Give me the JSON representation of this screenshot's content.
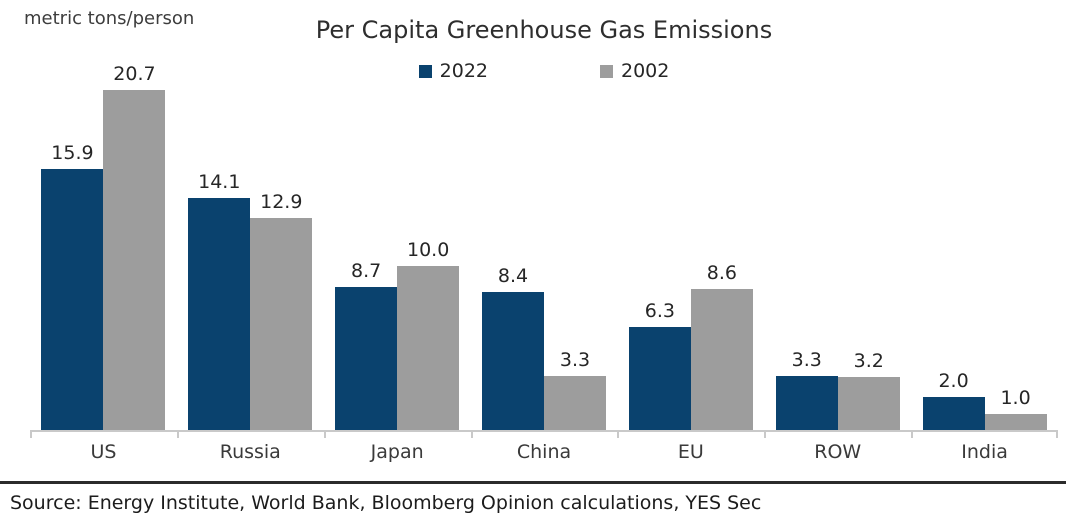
{
  "header": {
    "unit_label": "metric tons/person",
    "title": "Per Capita Greenhouse Gas Emissions"
  },
  "chart_data": {
    "type": "bar",
    "title": "Per Capita Greenhouse Gas Emissions",
    "ylabel": "metric tons/person",
    "xlabel": "",
    "categories": [
      "US",
      "Russia",
      "Japan",
      "China",
      "EU",
      "ROW",
      "India"
    ],
    "series": [
      {
        "name": "2022",
        "color": "#0a426e",
        "values": [
          15.9,
          14.1,
          8.7,
          8.4,
          6.3,
          3.3,
          2.0
        ]
      },
      {
        "name": "2002",
        "color": "#9d9d9d",
        "values": [
          20.7,
          12.9,
          10.0,
          3.3,
          8.6,
          3.2,
          1.0
        ]
      }
    ],
    "ylim": [
      0,
      20.7
    ],
    "value_label_decimals": 1,
    "data_labels": true,
    "legend_position": "top",
    "grid": false,
    "axis_color": "#c9c9c9"
  },
  "footer": {
    "source_text": "Source: Energy Institute, World Bank, Bloomberg Opinion calculations, YES Sec"
  }
}
